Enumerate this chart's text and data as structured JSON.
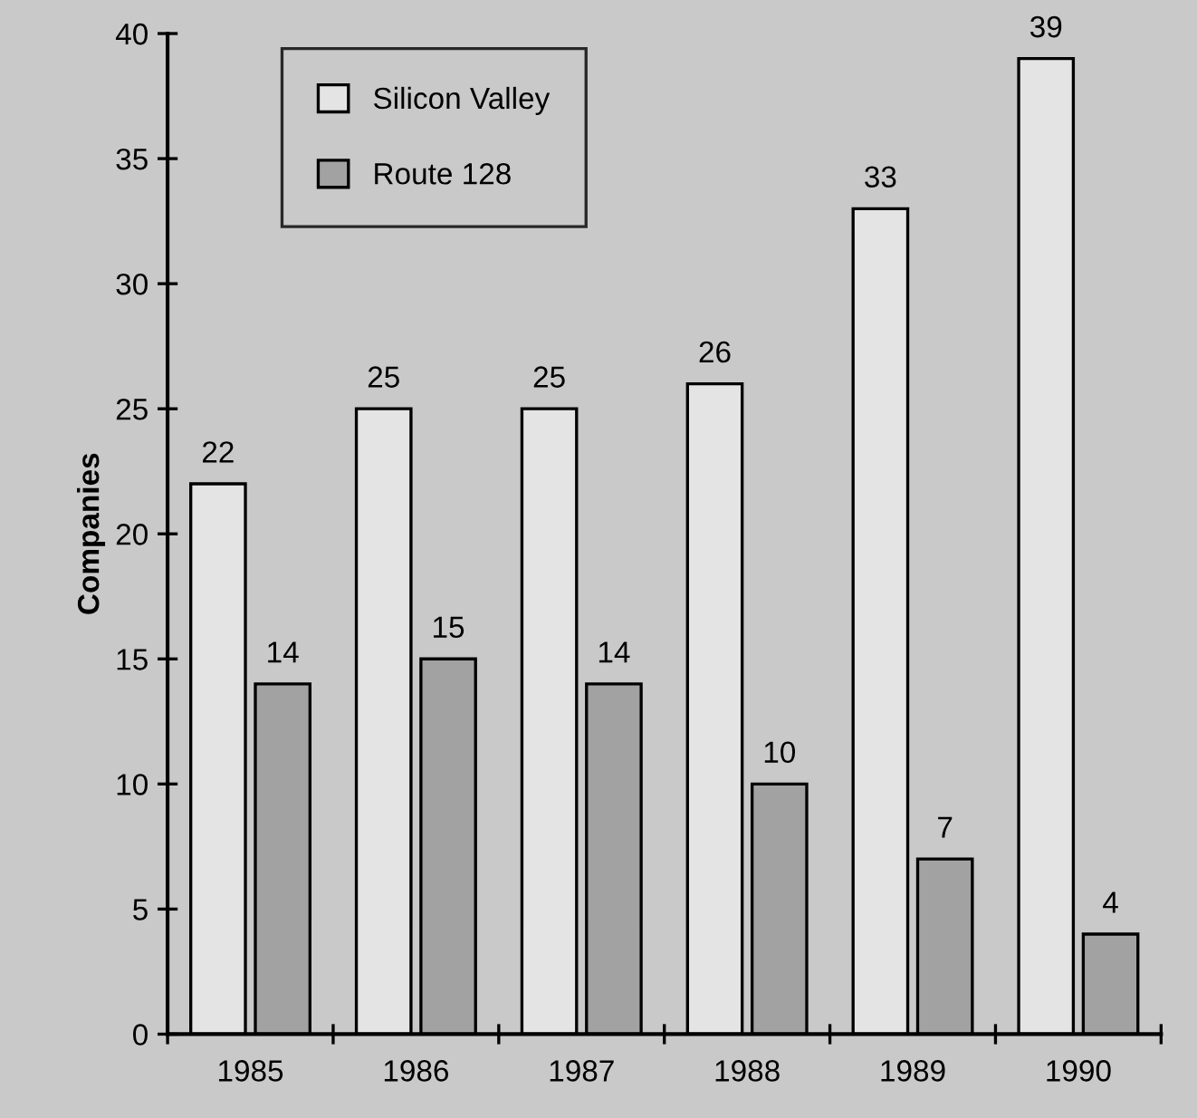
{
  "chart_data": {
    "type": "bar",
    "ylabel": "Companies",
    "categories": [
      "1985",
      "1986",
      "1987",
      "1988",
      "1989",
      "1990"
    ],
    "series": [
      {
        "name": "Silicon Valley",
        "color": "#e4e4e4",
        "values": [
          22,
          25,
          25,
          26,
          33,
          39
        ]
      },
      {
        "name": "Route 128",
        "color": "#a2a2a2",
        "values": [
          14,
          15,
          14,
          10,
          7,
          4
        ]
      }
    ],
    "ylim": [
      0,
      40
    ],
    "yticks": [
      0,
      5,
      10,
      15,
      20,
      25,
      30,
      35,
      40
    ],
    "data_labels": true,
    "legend": "top left",
    "grid": false
  }
}
